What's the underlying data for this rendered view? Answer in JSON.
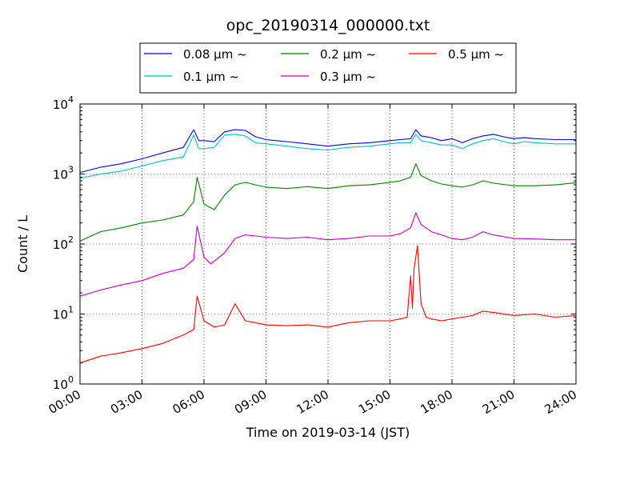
{
  "chart_data": {
    "type": "line",
    "title": "opc_20190314_000000.txt",
    "xlabel": "Time on 2019-03-14 (JST)",
    "ylabel": "Count / L",
    "yscale": "log",
    "xlim": [
      "00:00",
      "24:00"
    ],
    "ylim": [
      1,
      10000
    ],
    "x_ticks": [
      "00:00",
      "03:00",
      "06:00",
      "09:00",
      "12:00",
      "15:00",
      "18:00",
      "21:00",
      "24:00"
    ],
    "y_ticks": [
      {
        "base": "10",
        "exp": "0",
        "value": 1
      },
      {
        "base": "10",
        "exp": "1",
        "value": 10
      },
      {
        "base": "10",
        "exp": "2",
        "value": 100
      },
      {
        "base": "10",
        "exp": "3",
        "value": 1000
      },
      {
        "base": "10",
        "exp": "4",
        "value": 10000
      }
    ],
    "grid": true,
    "legend_position": "top-center",
    "legend_suffix": "~",
    "series": [
      {
        "name": "0.08 μm",
        "color": "#0000ff",
        "x": [
          "00:00",
          "01:00",
          "02:00",
          "03:00",
          "04:00",
          "05:00",
          "05:30",
          "05:45",
          "06:00",
          "06:30",
          "07:00",
          "07:30",
          "08:00",
          "08:30",
          "09:00",
          "09:30",
          "10:00",
          "11:00",
          "12:00",
          "13:00",
          "14:00",
          "15:00",
          "15:30",
          "16:00",
          "16:15",
          "16:30",
          "17:00",
          "17:30",
          "18:00",
          "18:30",
          "19:00",
          "19:30",
          "20:00",
          "20:30",
          "21:00",
          "21:30",
          "22:00",
          "23:00",
          "24:00"
        ],
        "values": [
          1050,
          1250,
          1400,
          1650,
          2000,
          2400,
          4300,
          3000,
          3000,
          2900,
          4000,
          4300,
          4200,
          3400,
          3100,
          3000,
          2900,
          2700,
          2500,
          2700,
          2800,
          3000,
          3100,
          3200,
          4300,
          3500,
          3300,
          3000,
          3200,
          2800,
          3200,
          3500,
          3700,
          3400,
          3200,
          3300,
          3200,
          3100,
          3100
        ]
      },
      {
        "name": "0.1 μm",
        "color": "#00bfbf",
        "x": [
          "00:00",
          "01:00",
          "02:00",
          "03:00",
          "04:00",
          "05:00",
          "05:30",
          "05:45",
          "06:00",
          "06:30",
          "07:00",
          "07:30",
          "08:00",
          "08:30",
          "09:00",
          "09:30",
          "10:00",
          "11:00",
          "12:00",
          "13:00",
          "14:00",
          "15:00",
          "15:30",
          "16:00",
          "16:15",
          "16:30",
          "17:00",
          "17:30",
          "18:00",
          "18:30",
          "19:00",
          "19:30",
          "20:00",
          "20:30",
          "21:00",
          "21:30",
          "22:00",
          "23:00",
          "24:00"
        ],
        "values": [
          870,
          1000,
          1100,
          1300,
          1550,
          1750,
          3600,
          2300,
          2300,
          2400,
          3600,
          3700,
          3500,
          2800,
          2700,
          2600,
          2500,
          2300,
          2200,
          2400,
          2500,
          2700,
          2800,
          2800,
          3700,
          3000,
          2800,
          2600,
          2600,
          2300,
          2700,
          3000,
          3200,
          2900,
          2700,
          2900,
          2800,
          2700,
          2700
        ]
      },
      {
        "name": "0.2 μm",
        "color": "#008000",
        "x": [
          "00:00",
          "01:00",
          "02:00",
          "03:00",
          "04:00",
          "05:00",
          "05:30",
          "05:40",
          "06:00",
          "06:30",
          "07:00",
          "07:30",
          "08:00",
          "08:30",
          "09:00",
          "10:00",
          "11:00",
          "12:00",
          "13:00",
          "14:00",
          "15:00",
          "15:30",
          "16:00",
          "16:15",
          "16:30",
          "17:00",
          "17:30",
          "18:00",
          "18:30",
          "19:00",
          "19:30",
          "20:00",
          "21:00",
          "22:00",
          "23:00",
          "24:00"
        ],
        "values": [
          110,
          150,
          170,
          200,
          220,
          260,
          400,
          900,
          370,
          310,
          500,
          700,
          760,
          700,
          650,
          620,
          660,
          620,
          680,
          700,
          760,
          800,
          900,
          1400,
          950,
          800,
          720,
          680,
          650,
          700,
          800,
          740,
          680,
          680,
          700,
          750
        ]
      },
      {
        "name": "0.3 μm",
        "color": "#bf00bf",
        "x": [
          "00:00",
          "01:00",
          "02:00",
          "03:00",
          "04:00",
          "05:00",
          "05:30",
          "05:40",
          "06:00",
          "06:20",
          "07:00",
          "07:30",
          "08:00",
          "08:30",
          "09:00",
          "10:00",
          "11:00",
          "12:00",
          "13:00",
          "14:00",
          "15:00",
          "15:30",
          "16:00",
          "16:15",
          "16:30",
          "17:00",
          "17:30",
          "18:00",
          "18:30",
          "19:00",
          "19:30",
          "20:00",
          "21:00",
          "22:00",
          "23:00",
          "24:00"
        ],
        "values": [
          18,
          22,
          26,
          30,
          38,
          45,
          60,
          180,
          65,
          52,
          75,
          120,
          135,
          130,
          125,
          120,
          125,
          115,
          120,
          130,
          130,
          140,
          170,
          280,
          190,
          150,
          135,
          120,
          115,
          125,
          150,
          135,
          120,
          118,
          115,
          115
        ]
      },
      {
        "name": "0.5 μm",
        "color": "#ff0000",
        "x": [
          "00:00",
          "01:00",
          "02:00",
          "03:00",
          "04:00",
          "05:00",
          "05:30",
          "05:40",
          "06:00",
          "06:30",
          "07:00",
          "07:30",
          "08:00",
          "08:30",
          "09:00",
          "10:00",
          "11:00",
          "12:00",
          "13:00",
          "14:00",
          "15:00",
          "15:30",
          "15:50",
          "16:00",
          "16:05",
          "16:10",
          "16:20",
          "16:30",
          "16:45",
          "17:00",
          "17:30",
          "18:00",
          "18:30",
          "19:00",
          "19:30",
          "20:00",
          "21:00",
          "22:00",
          "23:00",
          "24:00"
        ],
        "values": [
          2,
          2.5,
          2.8,
          3.2,
          3.8,
          5,
          6,
          18,
          8,
          6.5,
          7,
          14,
          8,
          7.5,
          7,
          6.8,
          7,
          6.5,
          7.5,
          8,
          8,
          8.5,
          9,
          35,
          12,
          45,
          95,
          14,
          9,
          8.5,
          8,
          8.5,
          9,
          9.5,
          11,
          10.5,
          9.5,
          10,
          9,
          9.5
        ]
      }
    ]
  }
}
